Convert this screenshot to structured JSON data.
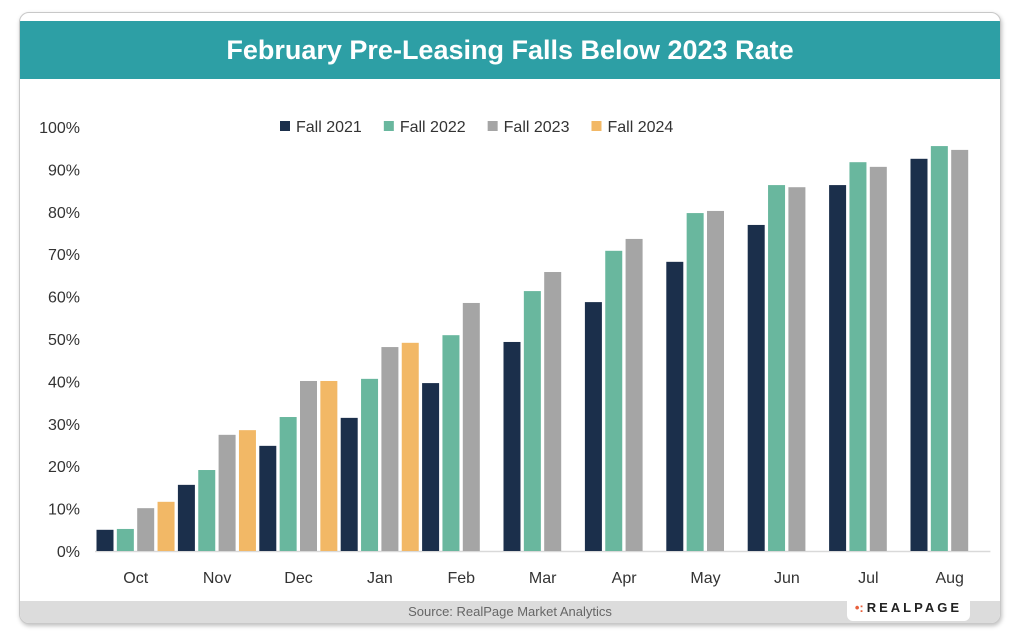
{
  "chart_data": {
    "type": "bar",
    "title": "February Pre-Leasing Falls Below 2023 Rate",
    "source": "Source: RealPage Market Analytics",
    "logo": "REALPAGE",
    "categories": [
      "Oct",
      "Nov",
      "Dec",
      "Jan",
      "Feb",
      "Mar",
      "Apr",
      "May",
      "Jun",
      "Jul",
      "Aug"
    ],
    "ylim": [
      0,
      100
    ],
    "yticks": [
      "0%",
      "10%",
      "20%",
      "30%",
      "40%",
      "50%",
      "60%",
      "70%",
      "80%",
      "90%",
      "100%"
    ],
    "legend_position": "top",
    "grid": false,
    "series": [
      {
        "name": "Fall 2021",
        "color": "#1b2f4b",
        "values": [
          5.0,
          15.6,
          24.8,
          31.4,
          39.6,
          49.3,
          58.7,
          68.2,
          76.9,
          86.3,
          92.5
        ]
      },
      {
        "name": "Fall 2022",
        "color": "#69b79e",
        "values": [
          5.2,
          19.1,
          31.6,
          40.6,
          50.9,
          61.3,
          70.8,
          79.7,
          86.3,
          91.7,
          95.5
        ]
      },
      {
        "name": "Fall 2023",
        "color": "#a5a5a5",
        "values": [
          10.1,
          27.4,
          40.1,
          48.1,
          58.5,
          65.8,
          73.6,
          80.2,
          85.8,
          90.6,
          94.6
        ]
      },
      {
        "name": "Fall 2024",
        "color": "#f2b866",
        "values": [
          11.6,
          28.5,
          40.1,
          49.1,
          null,
          null,
          null,
          null,
          null,
          null,
          null
        ]
      }
    ]
  }
}
